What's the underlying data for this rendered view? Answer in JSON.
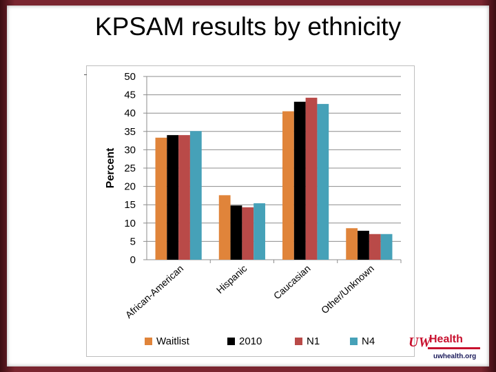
{
  "slide": {
    "title": "KPSAM results by ethnicity",
    "logo": {
      "brand": "Health",
      "mark": "UW",
      "url": "uwhealth.org"
    }
  },
  "chart_data": {
    "type": "bar",
    "title": "KPSAM results by ethnicity",
    "xlabel": "",
    "ylabel": "Percent",
    "ylim": [
      0,
      50
    ],
    "yticks": [
      0,
      5,
      10,
      15,
      20,
      25,
      30,
      35,
      40,
      45,
      50
    ],
    "grid": true,
    "legend_position": "bottom",
    "categories": [
      "African-American",
      "Hispanic",
      "Caucasian",
      "Other/Unknown"
    ],
    "series": [
      {
        "name": "Waitlist",
        "color": "#e0843a",
        "values": [
          33.3,
          17.6,
          40.5,
          8.6
        ]
      },
      {
        "name": "2010",
        "color": "#000000",
        "values": [
          34.0,
          14.8,
          43.1,
          7.9
        ]
      },
      {
        "name": "N1",
        "color": "#b94a48",
        "values": [
          34.0,
          14.3,
          44.2,
          7.0
        ]
      },
      {
        "name": "N4",
        "color": "#46a1b8",
        "values": [
          35.1,
          15.4,
          42.5,
          7.0
        ]
      }
    ]
  }
}
